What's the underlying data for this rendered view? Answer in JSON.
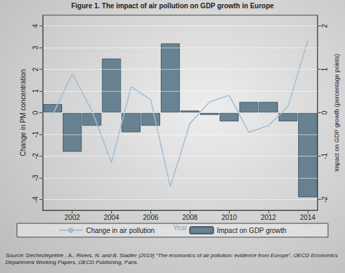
{
  "chart_data": {
    "type": "bar",
    "title": "Figure 1. The impact of air pollution on GDP growth in Europe",
    "x_label": "Year",
    "y_label": "Change in PM concentration",
    "y2_label": "Impact on GDP growth (percentage points)",
    "x": [
      2001,
      2002,
      2003,
      2004,
      2005,
      2006,
      2007,
      2008,
      2009,
      2010,
      2011,
      2012,
      2013,
      2014
    ],
    "xlim": [
      2000.5,
      2014.5
    ],
    "xticks": [
      2002,
      2004,
      2006,
      2008,
      2010,
      2012,
      2014
    ],
    "ylim": [
      -4.5,
      4.5
    ],
    "yticks": [
      -4,
      -3,
      -2,
      -1,
      0,
      1,
      2,
      3,
      4
    ],
    "y2lim": [
      -2.25,
      2.25
    ],
    "y2ticks": [
      -2,
      -1,
      0,
      1,
      2
    ],
    "grid": true,
    "legend": "bottom",
    "series": [
      {
        "name": "Change in air pollution",
        "type": "line",
        "color": "#9dbcd8",
        "axis": "y",
        "values": [
          -0.1,
          1.8,
          0.1,
          -2.3,
          1.2,
          0.6,
          -3.4,
          -0.5,
          0.5,
          0.8,
          -0.9,
          -0.6,
          0.3,
          3.3
        ]
      },
      {
        "name": "Impact on GDP growth",
        "type": "bar",
        "color": "#5c788a",
        "axis": "y2",
        "values": [
          0.2,
          -0.9,
          -0.3,
          1.25,
          -0.45,
          -0.3,
          1.6,
          0.05,
          -0.05,
          -0.2,
          0.25,
          0.25,
          -0.2,
          -1.95
        ]
      }
    ],
    "source": "Source: Dechezleprêtre , A., Rivers, N. and B. Stadler (2019) \"The economics of air pollution: evidence from Europe\", OECD Economics Department Working Papers, OECD Publishing, Paris."
  }
}
